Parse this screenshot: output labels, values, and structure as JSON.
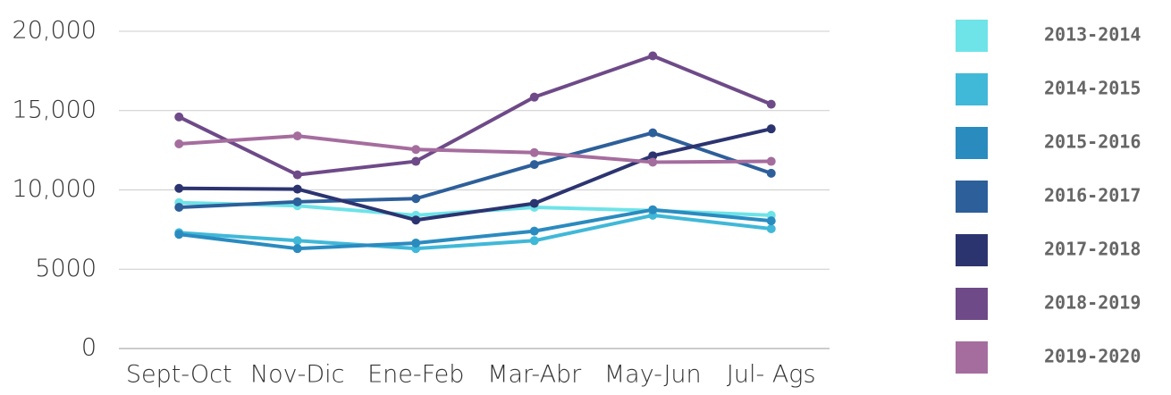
{
  "chart_data": {
    "type": "line",
    "categories": [
      "Sept-Oct",
      "Nov-Dic",
      "Ene-Feb",
      "Mar-Abr",
      "May-Jun",
      "Jul- Ags"
    ],
    "series": [
      {
        "name": "2013-2014",
        "color": "#6ee3e8",
        "values": [
          9200,
          9000,
          8400,
          8900,
          8700,
          8400
        ]
      },
      {
        "name": "2014-2015",
        "color": "#40b8d8",
        "values": [
          7300,
          6800,
          6300,
          6800,
          8400,
          7550
        ]
      },
      {
        "name": "2015-2016",
        "color": "#2a8bbf",
        "values": [
          7200,
          6300,
          6650,
          7400,
          8750,
          8050
        ]
      },
      {
        "name": "2016-2017",
        "color": "#2d5f9a",
        "values": [
          8900,
          9250,
          9450,
          11600,
          13600,
          11050
        ]
      },
      {
        "name": "2017-2018",
        "color": "#2c3470",
        "values": [
          10100,
          10050,
          8100,
          9150,
          12150,
          13850
        ]
      },
      {
        "name": "2018-2019",
        "color": "#6e4a88",
        "values": [
          14600,
          10950,
          11800,
          15850,
          18450,
          15400
        ]
      },
      {
        "name": "2019-2020",
        "color": "#a56d9e",
        "values": [
          12900,
          13400,
          12550,
          12350,
          11750,
          11800
        ]
      }
    ],
    "ylim": [
      0,
      20000
    ],
    "yticks": [
      0,
      5000,
      {
        "value": 10000,
        "label": "10,000"
      },
      {
        "value": 15000,
        "label": "15,000"
      },
      {
        "value": 20000,
        "label": "20,000"
      }
    ],
    "grid": true,
    "legend": "right"
  }
}
